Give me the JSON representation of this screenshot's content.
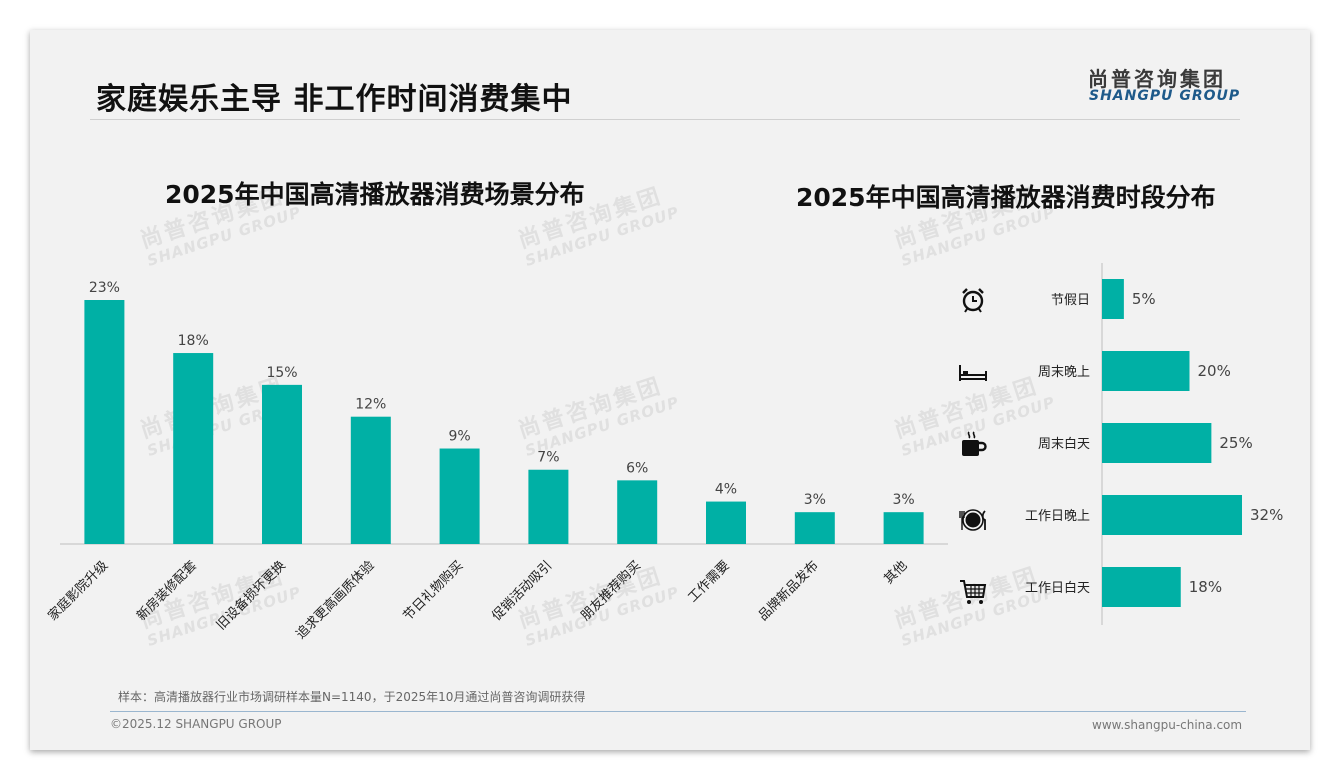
{
  "page": {
    "title": "家庭娱乐主导 非工作时间消费集中",
    "logo_cn": "尚普咨询集团",
    "logo_en": "SHANGPU GROUP",
    "note": "样本：高清播放器行业市场调研样本量N=1140，于2025年10月通过尚普咨询调研获得",
    "footer_left": "©2025.12 SHANGPU GROUP",
    "footer_right": "www.shangpu-china.com",
    "watermark_cn": "尚普咨询集团",
    "watermark_en": "SHANGPU GROUP",
    "accent_color": "#00b0a5"
  },
  "chart_data": [
    {
      "type": "bar",
      "title": "2025年中国高清播放器消费场景分布",
      "categories": [
        "家庭影院升级",
        "新房装修配套",
        "旧设备损坏更换",
        "追求更高画质体验",
        "节日礼物购买",
        "促销活动吸引",
        "朋友推荐购买",
        "工作需要",
        "品牌新品发布",
        "其他"
      ],
      "values": [
        23,
        18,
        15,
        12,
        9,
        7,
        6,
        4,
        3,
        3
      ],
      "value_labels": [
        "23%",
        "18%",
        "15%",
        "12%",
        "9%",
        "7%",
        "6%",
        "4%",
        "3%",
        "3%"
      ],
      "unit": "%",
      "ylim": [
        0,
        25
      ],
      "grid": false,
      "color": "#00b0a5"
    },
    {
      "type": "bar",
      "orientation": "horizontal",
      "title": "2025年中国高清播放器消费时段分布",
      "categories": [
        "节假日",
        "周末晚上",
        "周末白天",
        "工作日晚上",
        "工作日白天"
      ],
      "values": [
        5,
        20,
        25,
        32,
        18
      ],
      "value_labels": [
        "5%",
        "20%",
        "25%",
        "32%",
        "18%"
      ],
      "icons": [
        "alarm-clock-icon",
        "bed-icon",
        "coffee-cup-icon",
        "dining-icon",
        "shopping-cart-icon"
      ],
      "unit": "%",
      "xlim": [
        0,
        32
      ],
      "grid": false,
      "color": "#00b0a5"
    }
  ]
}
